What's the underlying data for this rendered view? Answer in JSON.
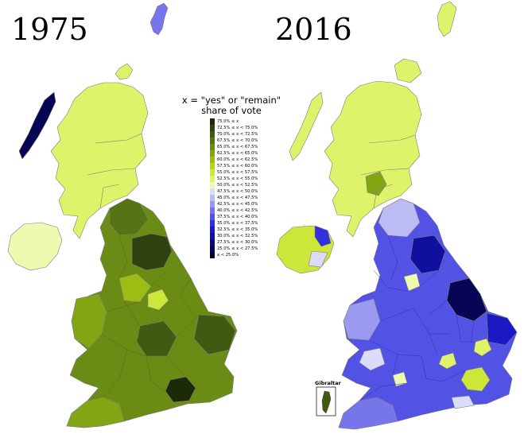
{
  "maps": {
    "left_title": "1975",
    "right_title": "2016"
  },
  "legend": {
    "title_line1": "x = \"yes\" or \"remain\"",
    "title_line2": "share of vote",
    "items": [
      {
        "label": "75.0% ≤ x",
        "color": "#1c2a08"
      },
      {
        "label": "72.5% ≤ x < 75.0%",
        "color": "#2f4210"
      },
      {
        "label": "70.0% ≤ x < 72.5%",
        "color": "#415a12"
      },
      {
        "label": "67.5% ≤ x < 70.0%",
        "color": "#557414"
      },
      {
        "label": "65.0% ≤ x < 67.5%",
        "color": "#6b8c14"
      },
      {
        "label": "62.5% ≤ x < 65.0%",
        "color": "#82a514"
      },
      {
        "label": "60.0% ≤ x < 62.5%",
        "color": "#9bbd14"
      },
      {
        "label": "57.5% ≤ x < 60.0%",
        "color": "#b7d41c"
      },
      {
        "label": "55.0% ≤ x < 57.5%",
        "color": "#cde63a"
      },
      {
        "label": "52.5% ≤ x < 55.0%",
        "color": "#def36a"
      },
      {
        "label": "50.0% ≤ x < 52.5%",
        "color": "#eefab0"
      },
      {
        "label": "47.5% ≤ x < 50.0%",
        "color": "#dcdcfa"
      },
      {
        "label": "45.0% ≤ x < 47.5%",
        "color": "#bcbcf5"
      },
      {
        "label": "42.5% ≤ x < 45.0%",
        "color": "#9a9af0"
      },
      {
        "label": "40.0% ≤ x < 42.5%",
        "color": "#7676ea"
      },
      {
        "label": "37.5% ≤ x < 40.0%",
        "color": "#5252e4"
      },
      {
        "label": "35.0% ≤ x < 37.5%",
        "color": "#3030dc"
      },
      {
        "label": "32.5% ≤ x < 35.0%",
        "color": "#1a1ac4"
      },
      {
        "label": "30.0% ≤ x < 32.5%",
        "color": "#10109e"
      },
      {
        "label": "27.5% ≤ x < 30.0%",
        "color": "#0a0a78"
      },
      {
        "label": "25.0% ≤ x < 27.5%",
        "color": "#060654"
      },
      {
        "label": "x < 25.0%",
        "color": "#020230"
      }
    ]
  },
  "inset": {
    "label": "Gibraltar"
  },
  "colors": {
    "scotland_1975": "#def36a",
    "n_ireland_1975": "#eefab0",
    "england_1975": "#6b8c14",
    "scotland_2016": "#def36a",
    "n_ireland_2016": "#cde63a",
    "england_2016": "#5252e4",
    "outline": "#7f7f7f"
  }
}
